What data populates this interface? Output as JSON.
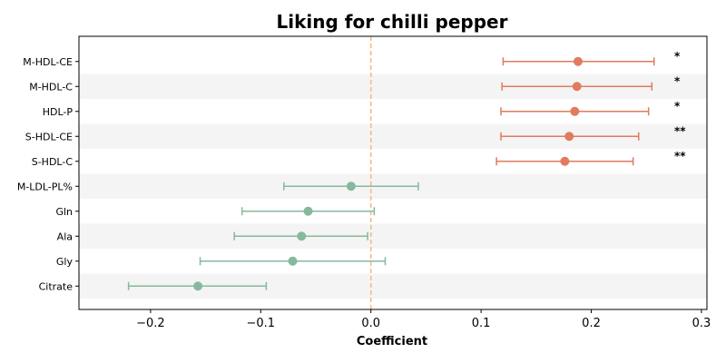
{
  "chart_data": {
    "type": "forest",
    "title": "Liking for chilli pepper",
    "xlabel": "Coefficient",
    "xlim": [
      -0.265,
      0.305
    ],
    "xticks": [
      -0.2,
      -0.1,
      0.0,
      0.1,
      0.2,
      0.3
    ],
    "xtick_labels": [
      "−0.2",
      "−0.1",
      "0.0",
      "0.1",
      "0.2",
      "0.3"
    ],
    "reference_line": 0.0,
    "reference_line_color": "#f4b97a",
    "positive_color": "#e07b5f",
    "negative_color": "#86b89c",
    "band_color": "#f4f4f4",
    "rows": [
      {
        "label": "M-HDL-CE",
        "estimate": 0.188,
        "lower": 0.12,
        "upper": 0.257,
        "sig": "*"
      },
      {
        "label": "M-HDL-C",
        "estimate": 0.187,
        "lower": 0.119,
        "upper": 0.255,
        "sig": "*"
      },
      {
        "label": "HDL-P",
        "estimate": 0.185,
        "lower": 0.118,
        "upper": 0.252,
        "sig": "*"
      },
      {
        "label": "S-HDL-CE",
        "estimate": 0.18,
        "lower": 0.118,
        "upper": 0.243,
        "sig": "**"
      },
      {
        "label": "S-HDL-C",
        "estimate": 0.176,
        "lower": 0.114,
        "upper": 0.238,
        "sig": "**"
      },
      {
        "label": "M-LDL-PL%",
        "estimate": -0.018,
        "lower": -0.079,
        "upper": 0.043,
        "sig": ""
      },
      {
        "label": "Gln",
        "estimate": -0.057,
        "lower": -0.117,
        "upper": 0.003,
        "sig": ""
      },
      {
        "label": "Ala",
        "estimate": -0.063,
        "lower": -0.124,
        "upper": -0.003,
        "sig": ""
      },
      {
        "label": "Gly",
        "estimate": -0.071,
        "lower": -0.155,
        "upper": 0.013,
        "sig": ""
      },
      {
        "label": "Citrate",
        "estimate": -0.157,
        "lower": -0.22,
        "upper": -0.095,
        "sig": ""
      }
    ]
  }
}
